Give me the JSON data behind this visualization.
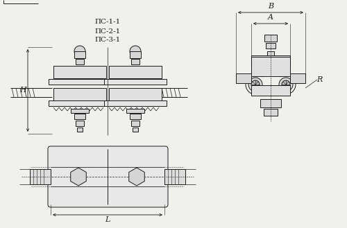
{
  "bg_color": "#f0f0ec",
  "line_color": "#1a1a1a",
  "labels": [
    "ПС-1-1",
    "ПС-2-1",
    "ПС-3-1"
  ],
  "font_size": 7.5
}
